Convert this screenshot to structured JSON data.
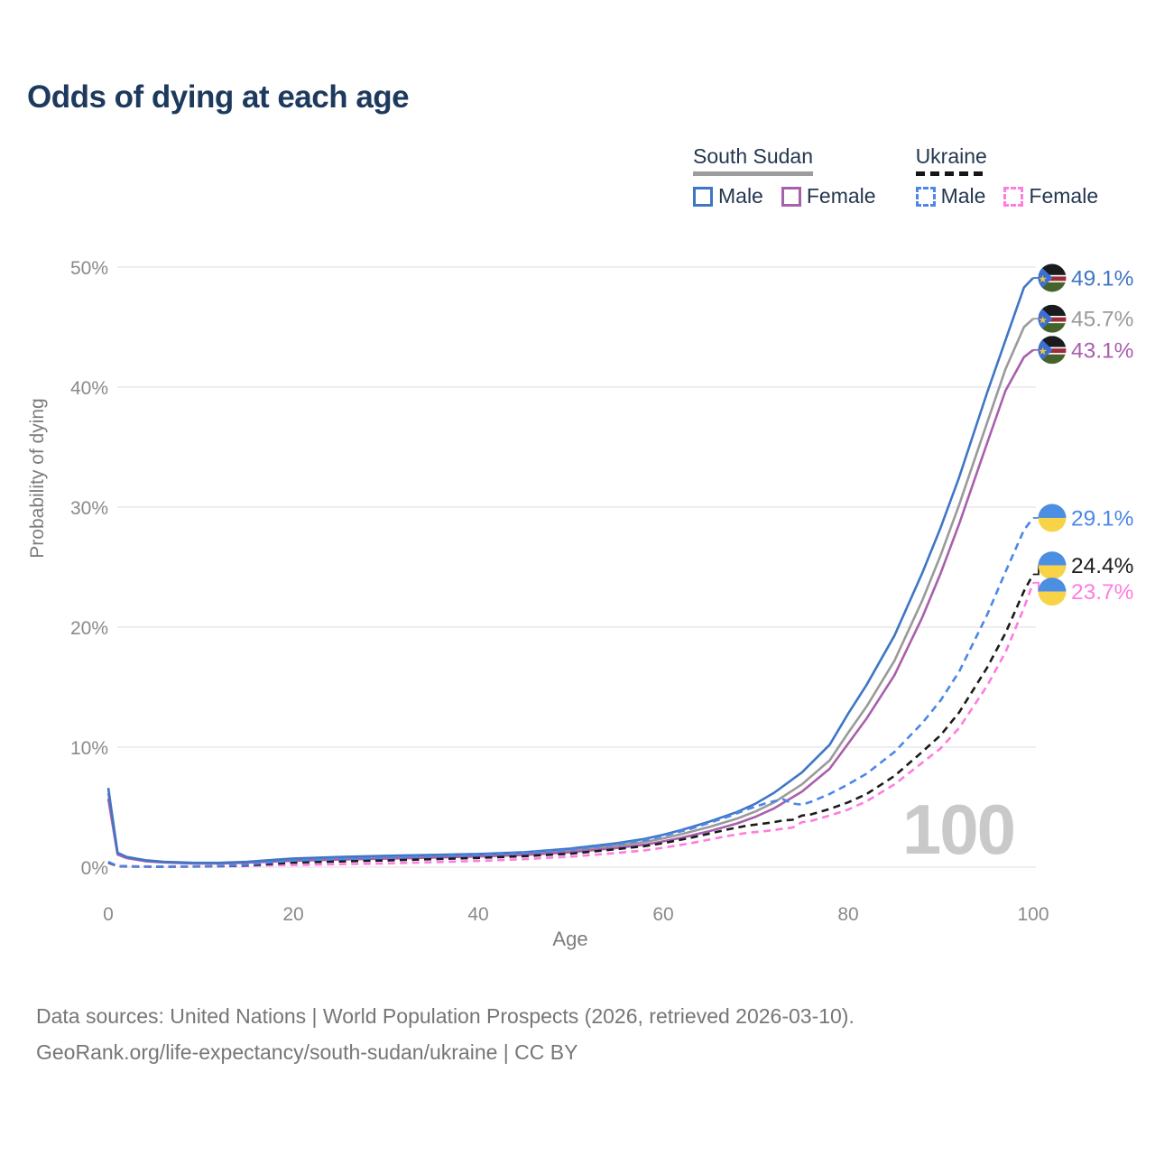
{
  "title": "Odds of dying at each age",
  "legend": {
    "groups": [
      {
        "country": "South Sudan",
        "line_style": "solid",
        "line_color": "#9c9c9c",
        "items": [
          {
            "label": "Male",
            "color": "#3e76c4",
            "dash": false
          },
          {
            "label": "Female",
            "color": "#a85fad",
            "dash": false
          }
        ]
      },
      {
        "country": "Ukraine",
        "line_style": "dashed",
        "line_color": "#161616",
        "items": [
          {
            "label": "Male",
            "color": "#4c86e8",
            "dash": true
          },
          {
            "label": "Female",
            "color": "#ff7ce0",
            "dash": true
          }
        ]
      }
    ]
  },
  "axes": {
    "x": {
      "title": "Age",
      "ticks": [
        {
          "value": 0,
          "label": "0"
        },
        {
          "value": 20,
          "label": "20"
        },
        {
          "value": 40,
          "label": "40"
        },
        {
          "value": 60,
          "label": "60"
        },
        {
          "value": 80,
          "label": "80"
        },
        {
          "value": 100,
          "label": "100"
        }
      ]
    },
    "y": {
      "title": "Probability of dying",
      "ticks": [
        {
          "value": 0,
          "label": "0%"
        },
        {
          "value": 10,
          "label": "10%"
        },
        {
          "value": 20,
          "label": "20%"
        },
        {
          "value": 30,
          "label": "30%"
        },
        {
          "value": 40,
          "label": "40%"
        },
        {
          "value": 50,
          "label": "50%"
        }
      ]
    }
  },
  "watermark": "100",
  "footer": {
    "line1": "Data sources: United Nations | World Population Prospects (2026, retrieved 2026-03-10).",
    "line2": "GeoRank.org/life-expectancy/south-sudan/ukraine | CC BY"
  },
  "chart_data": {
    "type": "line",
    "title": "Odds of dying at each age",
    "xlabel": "Age",
    "ylabel": "Probability of dying",
    "xlim": [
      0,
      100
    ],
    "ylim": [
      0,
      50
    ],
    "unit": "percent",
    "grid": "horizontal",
    "legend_position": "top-right",
    "series": [
      {
        "id": "ss-both",
        "name": "South Sudan",
        "color": "#9a9a9a",
        "dash": "solid",
        "flag": "south-sudan",
        "end_label": "45.7%",
        "points": [
          [
            0,
            6.15
          ],
          [
            1,
            1.12
          ],
          [
            2,
            0.8
          ],
          [
            4,
            0.54
          ],
          [
            6,
            0.42
          ],
          [
            9,
            0.34
          ],
          [
            12,
            0.33
          ],
          [
            15,
            0.41
          ],
          [
            18,
            0.55
          ],
          [
            20,
            0.63
          ],
          [
            25,
            0.75
          ],
          [
            30,
            0.84
          ],
          [
            35,
            0.91
          ],
          [
            40,
            1.0
          ],
          [
            45,
            1.13
          ],
          [
            50,
            1.4
          ],
          [
            55,
            1.8
          ],
          [
            58,
            2.1
          ],
          [
            60,
            2.4
          ],
          [
            62,
            2.75
          ],
          [
            65,
            3.35
          ],
          [
            68,
            4.05
          ],
          [
            70,
            4.65
          ],
          [
            72,
            5.4
          ],
          [
            75,
            6.9
          ],
          [
            78,
            8.9
          ],
          [
            80,
            11.2
          ],
          [
            82,
            13.4
          ],
          [
            85,
            17.2
          ],
          [
            88,
            22.2
          ],
          [
            90,
            26.0
          ],
          [
            92,
            30.2
          ],
          [
            95,
            37.0
          ],
          [
            97,
            41.5
          ],
          [
            99,
            45.0
          ],
          [
            100,
            45.7
          ]
        ]
      },
      {
        "id": "ss-female",
        "name": "South Sudan Female",
        "color": "#a85fad",
        "dash": "solid",
        "flag": "south-sudan",
        "end_label": "43.1%",
        "points": [
          [
            0,
            5.7
          ],
          [
            1,
            1.05
          ],
          [
            2,
            0.75
          ],
          [
            4,
            0.5
          ],
          [
            6,
            0.39
          ],
          [
            9,
            0.31
          ],
          [
            12,
            0.3
          ],
          [
            15,
            0.37
          ],
          [
            18,
            0.47
          ],
          [
            20,
            0.53
          ],
          [
            25,
            0.63
          ],
          [
            30,
            0.71
          ],
          [
            35,
            0.79
          ],
          [
            40,
            0.89
          ],
          [
            45,
            1.02
          ],
          [
            50,
            1.25
          ],
          [
            55,
            1.6
          ],
          [
            58,
            1.87
          ],
          [
            60,
            2.15
          ],
          [
            62,
            2.45
          ],
          [
            65,
            3.0
          ],
          [
            68,
            3.65
          ],
          [
            70,
            4.2
          ],
          [
            72,
            4.9
          ],
          [
            75,
            6.3
          ],
          [
            78,
            8.2
          ],
          [
            80,
            10.3
          ],
          [
            82,
            12.4
          ],
          [
            85,
            16.0
          ],
          [
            88,
            20.8
          ],
          [
            90,
            24.5
          ],
          [
            92,
            28.6
          ],
          [
            95,
            35.3
          ],
          [
            97,
            39.7
          ],
          [
            99,
            42.5
          ],
          [
            100,
            43.1
          ]
        ]
      },
      {
        "id": "ss-male",
        "name": "South Sudan Male",
        "color": "#3e76c4",
        "dash": "solid",
        "flag": "south-sudan",
        "end_label": "49.1%",
        "points": [
          [
            0,
            6.6
          ],
          [
            1,
            1.2
          ],
          [
            2,
            0.85
          ],
          [
            4,
            0.58
          ],
          [
            6,
            0.45
          ],
          [
            9,
            0.37
          ],
          [
            12,
            0.36
          ],
          [
            15,
            0.45
          ],
          [
            18,
            0.62
          ],
          [
            20,
            0.72
          ],
          [
            25,
            0.85
          ],
          [
            30,
            0.95
          ],
          [
            35,
            1.02
          ],
          [
            40,
            1.1
          ],
          [
            45,
            1.25
          ],
          [
            50,
            1.55
          ],
          [
            55,
            2.0
          ],
          [
            58,
            2.35
          ],
          [
            60,
            2.7
          ],
          [
            62,
            3.1
          ],
          [
            65,
            3.8
          ],
          [
            68,
            4.6
          ],
          [
            70,
            5.3
          ],
          [
            72,
            6.2
          ],
          [
            75,
            7.9
          ],
          [
            78,
            10.2
          ],
          [
            80,
            12.8
          ],
          [
            82,
            15.2
          ],
          [
            85,
            19.3
          ],
          [
            88,
            24.5
          ],
          [
            90,
            28.3
          ],
          [
            92,
            32.5
          ],
          [
            95,
            39.5
          ],
          [
            97,
            43.9
          ],
          [
            99,
            48.3
          ],
          [
            100,
            49.1
          ]
        ]
      },
      {
        "id": "ua-female",
        "name": "Ukraine Female",
        "color": "#ff7ce0",
        "dash": "dashed",
        "flag": "ukraine",
        "end_label": "23.7%",
        "points": [
          [
            0,
            0.35
          ],
          [
            1,
            0.07
          ],
          [
            3,
            0.04
          ],
          [
            6,
            0.03
          ],
          [
            10,
            0.05
          ],
          [
            13,
            0.08
          ],
          [
            15,
            0.1
          ],
          [
            17,
            0.14
          ],
          [
            20,
            0.18
          ],
          [
            25,
            0.25
          ],
          [
            30,
            0.31
          ],
          [
            35,
            0.41
          ],
          [
            40,
            0.52
          ],
          [
            45,
            0.67
          ],
          [
            50,
            0.87
          ],
          [
            55,
            1.18
          ],
          [
            58,
            1.4
          ],
          [
            60,
            1.62
          ],
          [
            63,
            2.0
          ],
          [
            65,
            2.3
          ],
          [
            67,
            2.6
          ],
          [
            69,
            2.85
          ],
          [
            71,
            3.0
          ],
          [
            72,
            3.1
          ],
          [
            73,
            3.2
          ],
          [
            74,
            3.3
          ],
          [
            75,
            3.75
          ],
          [
            76,
            3.85
          ],
          [
            78,
            4.3
          ],
          [
            80,
            4.8
          ],
          [
            82,
            5.5
          ],
          [
            85,
            6.9
          ],
          [
            88,
            8.7
          ],
          [
            90,
            9.9
          ],
          [
            92,
            11.6
          ],
          [
            95,
            15.1
          ],
          [
            97,
            17.9
          ],
          [
            99,
            21.6
          ],
          [
            100,
            23.7
          ]
        ]
      },
      {
        "id": "ua-both",
        "name": "Ukraine",
        "color": "#1b1b1b",
        "dash": "dashed",
        "flag": "ukraine",
        "end_label": "24.4%",
        "points": [
          [
            0,
            0.4
          ],
          [
            1,
            0.08
          ],
          [
            3,
            0.05
          ],
          [
            6,
            0.04
          ],
          [
            10,
            0.06
          ],
          [
            13,
            0.1
          ],
          [
            15,
            0.15
          ],
          [
            17,
            0.25
          ],
          [
            20,
            0.38
          ],
          [
            25,
            0.47
          ],
          [
            30,
            0.56
          ],
          [
            35,
            0.66
          ],
          [
            40,
            0.77
          ],
          [
            45,
            0.92
          ],
          [
            50,
            1.12
          ],
          [
            55,
            1.5
          ],
          [
            58,
            1.75
          ],
          [
            60,
            2.0
          ],
          [
            63,
            2.45
          ],
          [
            65,
            2.8
          ],
          [
            67,
            3.15
          ],
          [
            69,
            3.45
          ],
          [
            71,
            3.65
          ],
          [
            72,
            3.75
          ],
          [
            73,
            3.9
          ],
          [
            74,
            3.95
          ],
          [
            75,
            4.3
          ],
          [
            76,
            4.4
          ],
          [
            78,
            4.85
          ],
          [
            80,
            5.4
          ],
          [
            82,
            6.1
          ],
          [
            85,
            7.6
          ],
          [
            88,
            9.6
          ],
          [
            90,
            11.0
          ],
          [
            92,
            12.9
          ],
          [
            95,
            16.6
          ],
          [
            97,
            19.5
          ],
          [
            99,
            23.0
          ],
          [
            100,
            24.4
          ]
        ]
      },
      {
        "id": "ua-male",
        "name": "Ukraine Male",
        "color": "#4c86e8",
        "dash": "dashed",
        "flag": "ukraine",
        "end_label": "29.1%",
        "points": [
          [
            0,
            0.45
          ],
          [
            1,
            0.09
          ],
          [
            3,
            0.06
          ],
          [
            6,
            0.05
          ],
          [
            10,
            0.07
          ],
          [
            13,
            0.12
          ],
          [
            15,
            0.2
          ],
          [
            17,
            0.35
          ],
          [
            20,
            0.55
          ],
          [
            25,
            0.67
          ],
          [
            30,
            0.78
          ],
          [
            35,
            0.9
          ],
          [
            40,
            1.02
          ],
          [
            45,
            1.18
          ],
          [
            50,
            1.45
          ],
          [
            55,
            1.9
          ],
          [
            58,
            2.25
          ],
          [
            60,
            2.6
          ],
          [
            63,
            3.2
          ],
          [
            65,
            3.7
          ],
          [
            67,
            4.2
          ],
          [
            69,
            4.8
          ],
          [
            71,
            5.3
          ],
          [
            72,
            5.5
          ],
          [
            73,
            5.65
          ],
          [
            74,
            5.3
          ],
          [
            75,
            5.2
          ],
          [
            76,
            5.45
          ],
          [
            78,
            6.1
          ],
          [
            80,
            6.9
          ],
          [
            82,
            7.8
          ],
          [
            85,
            9.6
          ],
          [
            88,
            12.0
          ],
          [
            90,
            13.9
          ],
          [
            92,
            16.3
          ],
          [
            95,
            21.0
          ],
          [
            97,
            24.6
          ],
          [
            99,
            28.1
          ],
          [
            100,
            29.1
          ]
        ]
      }
    ],
    "flag_colors": {
      "south_sudan": {
        "black": "#191b1e",
        "white": "#ffffff",
        "red": "#9e2c38",
        "green": "#47632c",
        "triangle_blue": "#3c6fd0",
        "star_gold": "#eec53f"
      },
      "ukraine": {
        "blue": "#4b8ee2",
        "yellow": "#f8d348"
      }
    },
    "gridline_color": "#e9e9e9",
    "tick_color": "#8a8a8a",
    "watermark_color": "#c9c9c9"
  }
}
